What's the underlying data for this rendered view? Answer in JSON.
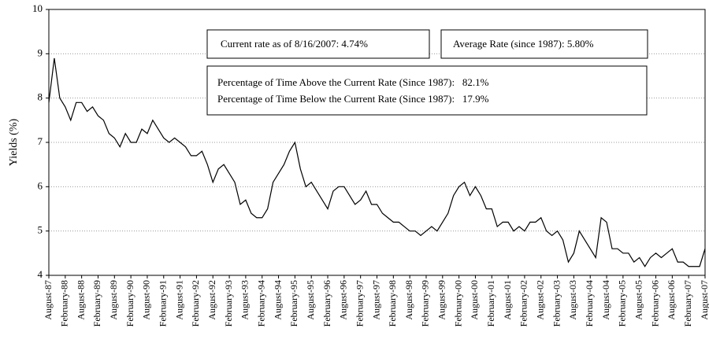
{
  "chart_data": {
    "type": "line",
    "y_label": "Yields (%)",
    "color": "#000000",
    "grid": true,
    "ylim": [
      4,
      10
    ],
    "yticks": [
      4,
      5,
      6,
      7,
      8,
      9,
      10
    ],
    "annotations": [
      "Current rate as of 8/16/2007: 4.74%",
      "Average Rate (since 1987): 5.80%",
      "Percentage of Time Above the Current Rate (Since 1987):   82.1%",
      "Percentage of Time Below the Current Rate (Since 1987):   17.9%"
    ],
    "categories": [
      "August-87",
      null,
      null,
      "February-88",
      null,
      null,
      "August-88",
      null,
      null,
      "February-89",
      null,
      null,
      "August-89",
      null,
      null,
      "February-90",
      null,
      null,
      "August-90",
      null,
      null,
      "February-91",
      null,
      null,
      "August-91",
      null,
      null,
      "February-92",
      null,
      null,
      "August-92",
      null,
      null,
      "February-93",
      null,
      null,
      "August-93",
      null,
      null,
      "February-94",
      null,
      null,
      "August-94",
      null,
      null,
      "February-95",
      null,
      null,
      "August-95",
      null,
      null,
      "February-96",
      null,
      null,
      "August-96",
      null,
      null,
      "February-97",
      null,
      null,
      "August-97",
      null,
      null,
      "February-98",
      null,
      null,
      "August-98",
      null,
      null,
      "February-99",
      null,
      null,
      "August-99",
      null,
      null,
      "February-00",
      null,
      null,
      "August-00",
      null,
      null,
      "February-01",
      null,
      null,
      "August-01",
      null,
      null,
      "February-02",
      null,
      null,
      "August-02",
      null,
      null,
      "February-03",
      null,
      null,
      "August-03",
      null,
      null,
      "February-04",
      null,
      null,
      "August-04",
      null,
      null,
      "February-05",
      null,
      null,
      "August-05",
      null,
      null,
      "February-06",
      null,
      null,
      "August-06",
      null,
      null,
      "February-07",
      null,
      null,
      "August-07"
    ],
    "values": [
      7.9,
      8.9,
      8.0,
      7.8,
      7.5,
      7.9,
      7.9,
      7.7,
      7.8,
      7.6,
      7.5,
      7.2,
      7.1,
      6.9,
      7.2,
      7.0,
      7.0,
      7.3,
      7.2,
      7.5,
      7.3,
      7.1,
      7.0,
      7.1,
      7.0,
      6.9,
      6.7,
      6.7,
      6.8,
      6.5,
      6.1,
      6.4,
      6.5,
      6.3,
      6.1,
      5.6,
      5.7,
      5.4,
      5.3,
      5.3,
      5.5,
      6.1,
      6.3,
      6.5,
      6.8,
      7.0,
      6.4,
      6.0,
      6.1,
      5.9,
      5.7,
      5.5,
      5.9,
      6.0,
      6.0,
      5.8,
      5.6,
      5.7,
      5.9,
      5.6,
      5.6,
      5.4,
      5.3,
      5.2,
      5.2,
      5.1,
      5.0,
      5.0,
      4.9,
      5.0,
      5.1,
      5.0,
      5.2,
      5.4,
      5.8,
      6.0,
      6.1,
      5.8,
      6.0,
      5.8,
      5.5,
      5.5,
      5.1,
      5.2,
      5.2,
      5.0,
      5.1,
      5.0,
      5.2,
      5.2,
      5.3,
      5.0,
      4.9,
      5.0,
      4.8,
      4.3,
      4.5,
      5.0,
      4.8,
      4.6,
      4.4,
      5.3,
      5.2,
      4.6,
      4.6,
      4.5,
      4.5,
      4.3,
      4.4,
      4.2,
      4.4,
      4.5,
      4.4,
      4.5,
      4.6,
      4.3,
      4.3,
      4.2,
      4.2,
      4.2,
      4.6
    ]
  }
}
